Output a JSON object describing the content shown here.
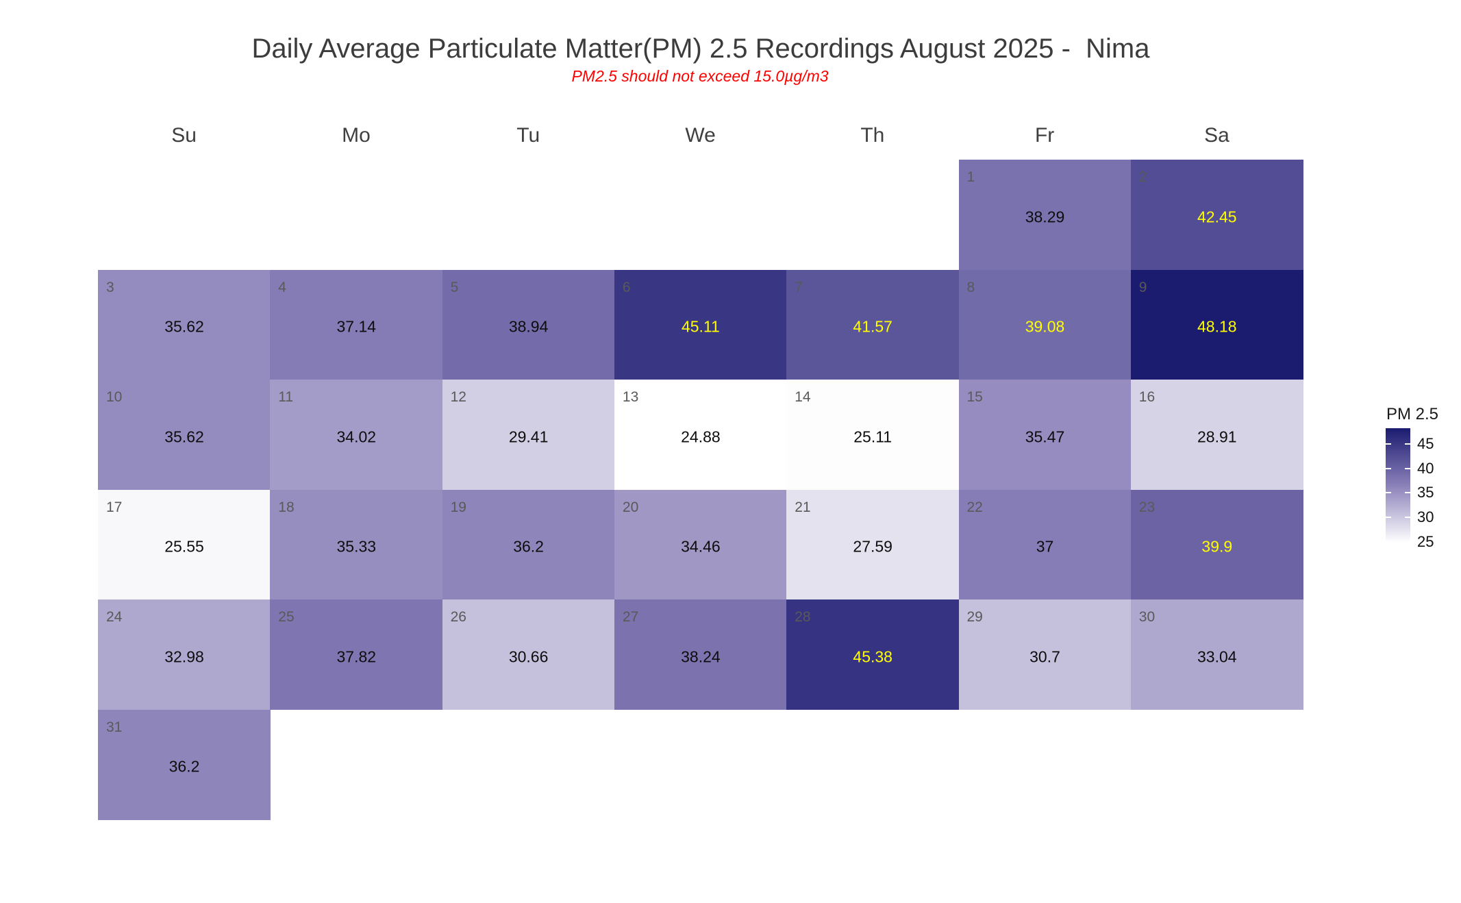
{
  "chart_data": {
    "type": "heatmap",
    "title": "Daily Average Particulate Matter(PM) 2.5 Recordings August 2025 -  Nima",
    "subtitle": "PM2.5 should not exceed 15.0µg/m3",
    "title_color": "#3c3c3c",
    "subtitle_color": "#ff0000",
    "weekday_headers": [
      "Su",
      "Mo",
      "Tu",
      "We",
      "Th",
      "Fr",
      "Sa"
    ],
    "month": "August 2025",
    "month_start_col": 5,
    "grid": {
      "rows": 6,
      "cols": 7
    },
    "days": [
      {
        "day": 1,
        "value": 38.29,
        "label": "38.29"
      },
      {
        "day": 2,
        "value": 42.45,
        "label": "42.45"
      },
      {
        "day": 3,
        "value": 35.62,
        "label": "35.62"
      },
      {
        "day": 4,
        "value": 37.14,
        "label": "37.14"
      },
      {
        "day": 5,
        "value": 38.94,
        "label": "38.94"
      },
      {
        "day": 6,
        "value": 45.11,
        "label": "45.11"
      },
      {
        "day": 7,
        "value": 41.57,
        "label": "41.57"
      },
      {
        "day": 8,
        "value": 39.08,
        "label": "39.08"
      },
      {
        "day": 9,
        "value": 48.18,
        "label": "48.18"
      },
      {
        "day": 10,
        "value": 35.62,
        "label": "35.62"
      },
      {
        "day": 11,
        "value": 34.02,
        "label": "34.02"
      },
      {
        "day": 12,
        "value": 29.41,
        "label": "29.41"
      },
      {
        "day": 13,
        "value": 24.88,
        "label": "24.88"
      },
      {
        "day": 14,
        "value": 25.11,
        "label": "25.11"
      },
      {
        "day": 15,
        "value": 35.47,
        "label": "35.47"
      },
      {
        "day": 16,
        "value": 28.91,
        "label": "28.91"
      },
      {
        "day": 17,
        "value": 25.55,
        "label": "25.55"
      },
      {
        "day": 18,
        "value": 35.33,
        "label": "35.33"
      },
      {
        "day": 19,
        "value": 36.2,
        "label": "36.2"
      },
      {
        "day": 20,
        "value": 34.46,
        "label": "34.46"
      },
      {
        "day": 21,
        "value": 27.59,
        "label": "27.59"
      },
      {
        "day": 22,
        "value": 37,
        "label": "37"
      },
      {
        "day": 23,
        "value": 39.9,
        "label": "39.9"
      },
      {
        "day": 24,
        "value": 32.98,
        "label": "32.98"
      },
      {
        "day": 25,
        "value": 37.82,
        "label": "37.82"
      },
      {
        "day": 26,
        "value": 30.66,
        "label": "30.66"
      },
      {
        "day": 27,
        "value": 38.24,
        "label": "38.24"
      },
      {
        "day": 28,
        "value": 45.38,
        "label": "45.38"
      },
      {
        "day": 29,
        "value": 30.7,
        "label": "30.7"
      },
      {
        "day": 30,
        "value": 33.04,
        "label": "33.04"
      },
      {
        "day": 31,
        "value": 36.2,
        "label": "36.2"
      }
    ],
    "colorscale": {
      "vmin": 24.88,
      "vmax": 48.18,
      "stops": [
        [
          0,
          "#ffffff"
        ],
        [
          0.5,
          "#8b81b9"
        ],
        [
          1,
          "#1b1b70"
        ]
      ]
    },
    "value_label_rules": {
      "default_color": "#0d0d0d",
      "highlight_color": "#ffff00",
      "highlight_min": 39
    },
    "day_number_color": "#595959",
    "legend": {
      "title": "PM 2.5",
      "ticks": [
        45,
        40,
        35,
        30,
        25
      ],
      "position": "right"
    }
  }
}
